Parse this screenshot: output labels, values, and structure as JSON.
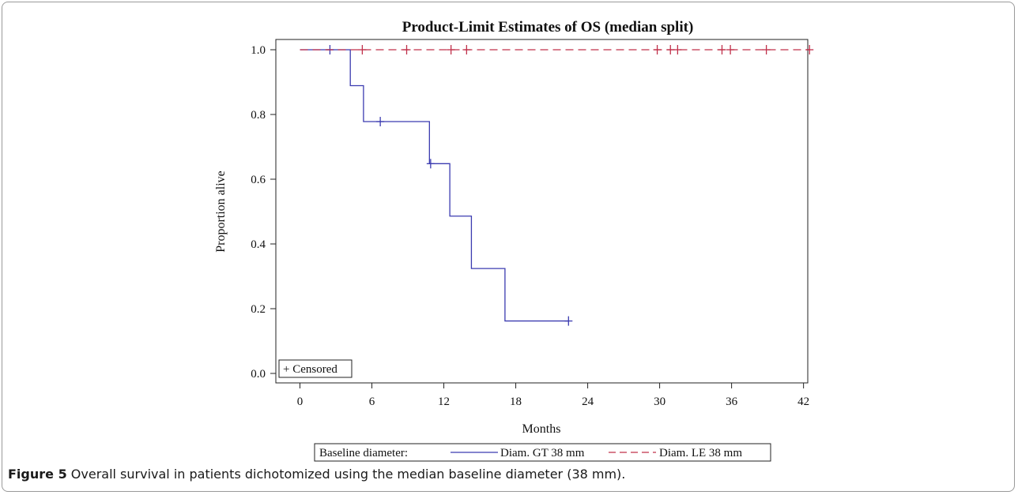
{
  "chart_data": {
    "type": "line",
    "title": "Product-Limit Estimates of OS (median split)",
    "xlabel": "Months",
    "ylabel": "Proportion alive",
    "xlim": [
      0,
      43
    ],
    "ylim": [
      0,
      1
    ],
    "xticks": [
      "0",
      "6",
      "12",
      "18",
      "24",
      "30",
      "36",
      "42"
    ],
    "yticks": [
      "0.0",
      "0.2",
      "0.4",
      "0.6",
      "0.8",
      "1.0"
    ],
    "inset_legend": "+ Censored",
    "legend": {
      "title": "Baseline diameter:",
      "placement": "bottom",
      "entries": [
        "Diam. GT 38 mm",
        "Diam. LE 38 mm"
      ]
    },
    "series": [
      {
        "name": "Diam. GT 38 mm",
        "color": "#3b3bb0",
        "style": "solid",
        "step_x": [
          0,
          4.2,
          5.3,
          10.8,
          12.5,
          14.3,
          17.1,
          22.4
        ],
        "step_y": [
          1.0,
          0.889,
          0.778,
          0.648,
          0.486,
          0.324,
          0.162,
          0.162
        ],
        "censored": [
          [
            2.5,
            1.0
          ],
          [
            6.7,
            0.778
          ],
          [
            10.9,
            0.648
          ],
          [
            22.4,
            0.162
          ]
        ]
      },
      {
        "name": "Diam. LE 38 mm",
        "color": "#c0304a",
        "style": "dashed",
        "step_x": [
          0,
          42.5
        ],
        "step_y": [
          1.0,
          1.0
        ],
        "censored": [
          [
            5.2,
            1.0
          ],
          [
            8.9,
            1.0
          ],
          [
            12.6,
            1.0
          ],
          [
            13.9,
            1.0
          ],
          [
            29.8,
            1.0
          ],
          [
            30.9,
            1.0
          ],
          [
            31.5,
            1.0
          ],
          [
            35.2,
            1.0
          ],
          [
            35.9,
            1.0
          ],
          [
            38.9,
            1.0
          ],
          [
            42.5,
            1.0
          ]
        ]
      }
    ]
  },
  "caption": {
    "label": "Figure 5",
    "text": " Overall survival in patients dichotomized using the median baseline diameter (38 mm)."
  }
}
